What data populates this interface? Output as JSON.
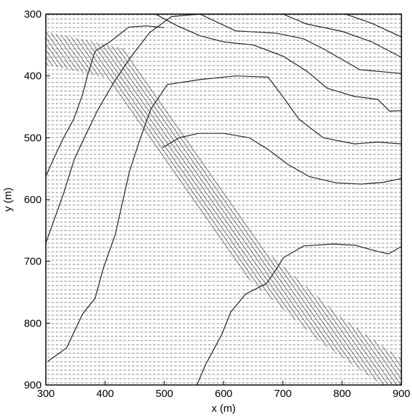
{
  "chart_data": {
    "type": "contour+quiver",
    "xlabel": "x (m)",
    "ylabel": "y (m)",
    "xlim": [
      300,
      900
    ],
    "ylim": [
      300,
      900
    ],
    "y_axis_direction": "down",
    "grid": false,
    "xticks": [
      "300",
      "400",
      "500",
      "600",
      "700",
      "800",
      "900"
    ],
    "yticks": [
      "300",
      "400",
      "500",
      "600",
      "700",
      "800",
      "900"
    ],
    "contours": [
      {
        "points": [
          [
            303,
            862
          ],
          [
            335,
            840
          ],
          [
            362,
            785
          ],
          [
            383,
            760
          ],
          [
            397,
            711
          ],
          [
            417,
            657
          ],
          [
            441,
            555
          ],
          [
            458,
            505
          ],
          [
            477,
            454
          ],
          [
            505,
            414
          ],
          [
            560,
            406
          ],
          [
            620,
            400
          ],
          [
            675,
            402
          ],
          [
            698,
            431
          ],
          [
            727,
            470
          ],
          [
            768,
            500
          ],
          [
            821,
            510
          ],
          [
            860,
            507
          ],
          [
            900,
            510
          ]
        ]
      },
      {
        "points": [
          [
            300,
            670
          ],
          [
            315,
            630
          ],
          [
            330,
            590
          ],
          [
            348,
            535
          ],
          [
            365,
            500
          ],
          [
            387,
            456
          ],
          [
            415,
            410
          ],
          [
            443,
            370
          ],
          [
            475,
            330
          ],
          [
            512,
            304
          ],
          [
            560,
            300
          ]
        ]
      },
      {
        "points": [
          [
            300,
            562
          ],
          [
            315,
            530
          ],
          [
            330,
            500
          ],
          [
            347,
            470
          ],
          [
            362,
            430
          ],
          [
            370,
            400
          ],
          [
            383,
            360
          ],
          [
            408,
            345
          ],
          [
            440,
            321
          ],
          [
            470,
            319
          ],
          [
            500,
            322
          ]
        ]
      },
      {
        "points": [
          [
            555,
            900
          ],
          [
            569,
            868
          ],
          [
            597,
            818
          ],
          [
            612,
            782
          ],
          [
            637,
            753
          ],
          [
            672,
            736
          ],
          [
            686,
            717
          ],
          [
            701,
            694
          ],
          [
            735,
            675
          ],
          [
            785,
            672
          ],
          [
            822,
            674
          ],
          [
            860,
            684
          ],
          [
            878,
            688
          ],
          [
            900,
            676
          ]
        ]
      },
      {
        "points": [
          [
            497,
            516
          ],
          [
            525,
            500
          ],
          [
            558,
            493
          ],
          [
            600,
            493
          ],
          [
            643,
            500
          ],
          [
            675,
            519
          ],
          [
            708,
            543
          ],
          [
            745,
            563
          ],
          [
            790,
            573
          ],
          [
            832,
            575
          ],
          [
            870,
            572
          ],
          [
            900,
            566
          ]
        ]
      },
      {
        "points": [
          [
            485,
            300
          ],
          [
            520,
            318
          ],
          [
            560,
            335
          ],
          [
            600,
            345
          ],
          [
            650,
            350
          ],
          [
            700,
            368
          ],
          [
            740,
            392
          ],
          [
            775,
            420
          ],
          [
            820,
            433
          ],
          [
            860,
            438
          ],
          [
            880,
            457
          ],
          [
            900,
            456
          ]
        ]
      },
      {
        "points": [
          [
            560,
            300
          ],
          [
            620,
            327
          ],
          [
            690,
            331
          ],
          [
            735,
            340
          ],
          [
            770,
            357
          ],
          [
            830,
            390
          ],
          [
            900,
            396
          ]
        ]
      },
      {
        "points": [
          [
            700,
            300
          ],
          [
            740,
            316
          ],
          [
            800,
            328
          ],
          [
            850,
            345
          ],
          [
            900,
            370
          ]
        ]
      },
      {
        "points": [
          [
            806,
            300
          ],
          [
            850,
            315
          ],
          [
            900,
            337
          ]
        ]
      }
    ],
    "vector_field": {
      "description": "dense arrow field over whole domain",
      "band_path": [
        [
          300,
          355
        ],
        [
          420,
          380
        ],
        [
          520,
          520
        ],
        [
          650,
          700
        ],
        [
          780,
          810
        ],
        [
          900,
          890
        ]
      ]
    }
  }
}
